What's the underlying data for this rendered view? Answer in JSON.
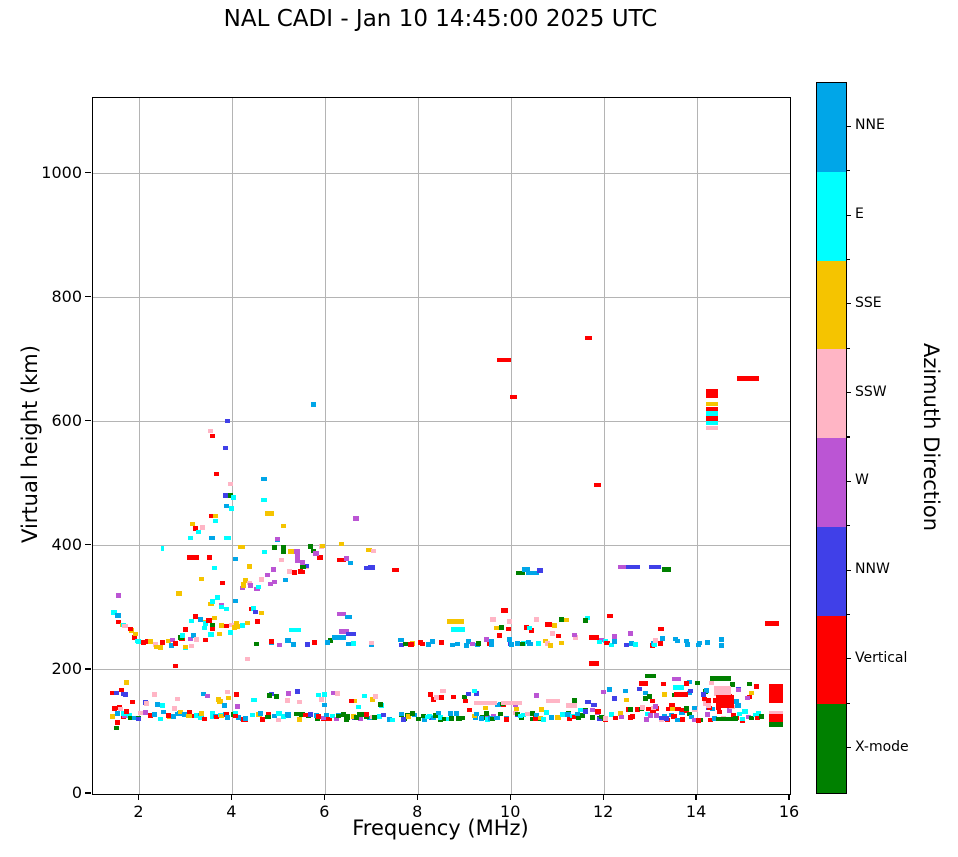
{
  "title": "NAL CADI - Jan 10 14:45:00 2025 UTC",
  "axes": {
    "x": {
      "label": "Frequency (MHz)",
      "min": 1,
      "max": 16,
      "ticks": [
        2,
        4,
        6,
        8,
        10,
        12,
        14,
        16
      ]
    },
    "y": {
      "label": "Virtual height (km)",
      "min": 0,
      "max": 1122,
      "ticks": [
        0,
        200,
        400,
        600,
        800,
        1000
      ]
    },
    "grid_color": "#b4b4b4"
  },
  "colorbar": {
    "label": "Azimuth Direction",
    "categories": [
      {
        "name": "NNE",
        "color": "#00A6E8"
      },
      {
        "name": "E",
        "color": "#00FFFF"
      },
      {
        "name": "SSE",
        "color": "#F5C400"
      },
      {
        "name": "SSW",
        "color": "#FFB5C5"
      },
      {
        "name": "W",
        "color": "#BB55D4"
      },
      {
        "name": "NNW",
        "color": "#4040E8"
      },
      {
        "name": "Vertical",
        "color": "#FE0000"
      },
      {
        "name": "X-mode",
        "color": "#008000"
      }
    ]
  },
  "chart_data": {
    "type": "scatter",
    "title": "NAL CADI - Jan 10 14:45:00 2025 UTC",
    "xlabel": "Frequency (MHz)",
    "ylabel": "Virtual height (km)",
    "xlim": [
      1,
      16
    ],
    "ylim": [
      0,
      1122
    ],
    "legend_categories": [
      "NNE",
      "E",
      "SSE",
      "SSW",
      "W",
      "NNW",
      "Vertical",
      "X-mode"
    ],
    "marker": {
      "w_mhz": 0.11,
      "h_km": 7.3
    },
    "bands": [
      {
        "seed": 11,
        "f0": 1.45,
        "f1": 5.5,
        "df": 0.11,
        "p": 0.97,
        "max": 3,
        "profile": [
          [
            1.45,
            127
          ],
          [
            5.5,
            125
          ]
        ],
        "spread": [
          6,
          6
        ],
        "colors": {
          "NNE": 34,
          "E": 16,
          "Vertical": 16,
          "SSE": 8,
          "X-mode": 8,
          "NNW": 7,
          "W": 5,
          "SSW": 6
        }
      },
      {
        "seed": 22,
        "f0": 5.5,
        "f1": 11.5,
        "df": 0.11,
        "p": 0.97,
        "max": 3,
        "profile": [
          [
            5.5,
            124
          ],
          [
            11.5,
            126
          ]
        ],
        "spread": [
          5,
          6
        ],
        "colors": {
          "X-mode": 30,
          "NNE": 25,
          "E": 12,
          "Vertical": 12,
          "NNW": 7,
          "W": 6,
          "SSE": 4,
          "SSW": 4
        }
      },
      {
        "seed": 33,
        "f0": 11.5,
        "f1": 15.35,
        "df": 0.11,
        "p": 0.95,
        "max": 3,
        "profile": [
          [
            11.5,
            128
          ],
          [
            15.35,
            130
          ]
        ],
        "spread": [
          9,
          12
        ],
        "colors": {
          "Vertical": 30,
          "X-mode": 20,
          "E": 14,
          "NNE": 10,
          "W": 11,
          "NNW": 6,
          "SSW": 5,
          "SSE": 4
        }
      },
      {
        "seed": 44,
        "f0": 1.45,
        "f1": 15.35,
        "df": 0.12,
        "p": 0.5,
        "max": 2,
        "profile": [
          [
            1.45,
            150
          ],
          [
            15.35,
            152
          ]
        ],
        "spread": [
          14,
          20
        ],
        "colors": {
          "SSW": 15,
          "W": 12,
          "E": 13,
          "NNE": 11,
          "Vertical": 16,
          "NNW": 10,
          "SSE": 10,
          "X-mode": 13
        }
      },
      {
        "seed": 55,
        "f0": 1.45,
        "f1": 1.78,
        "df": 0.07,
        "p": 0.92,
        "max": 4,
        "profile": [
          [
            1.45,
            140
          ],
          [
            1.78,
            140
          ]
        ],
        "spread": [
          46,
          46
        ],
        "colors": {
          "Vertical": 25,
          "NNW": 14,
          "E": 15,
          "SSE": 14,
          "NNE": 11,
          "X-mode": 5,
          "W": 6,
          "SSW": 10
        }
      },
      {
        "seed": 66,
        "f0": 12.6,
        "f1": 15.3,
        "df": 0.12,
        "p": 0.8,
        "max": 3,
        "profile": [
          [
            12.6,
            160
          ],
          [
            15.3,
            155
          ]
        ],
        "spread": [
          24,
          26
        ],
        "colors": {
          "Vertical": 30,
          "X-mode": 20,
          "E": 12,
          "W": 10,
          "SSW": 10,
          "NNE": 8,
          "SSE": 5,
          "NNW": 5
        }
      },
      {
        "seed": 77,
        "f0": 1.45,
        "f1": 4.6,
        "df": 0.09,
        "p": 0.95,
        "max": 2,
        "profile": [
          [
            1.45,
            292
          ],
          [
            1.8,
            258
          ],
          [
            2.1,
            237
          ],
          [
            2.5,
            236
          ],
          [
            3.0,
            244
          ],
          [
            3.5,
            258
          ],
          [
            4.0,
            272
          ],
          [
            4.6,
            292
          ]
        ],
        "spread": [
          9,
          14
        ],
        "colors": {
          "Vertical": 24,
          "SSW": 21,
          "SSE": 20,
          "E": 15,
          "NNE": 6,
          "X-mode": 6,
          "W": 4,
          "NNW": 4
        }
      },
      {
        "seed": 88,
        "f0": 2.9,
        "f1": 4.4,
        "df": 0.1,
        "p": 0.9,
        "max": 2,
        "profile": [
          [
            2.9,
            268
          ],
          [
            3.4,
            290
          ],
          [
            3.9,
            315
          ],
          [
            4.4,
            338
          ]
        ],
        "spread": [
          15,
          20
        ],
        "colors": {
          "E": 30,
          "NNE": 12,
          "SSE": 16,
          "Vertical": 12,
          "X-mode": 10,
          "SSW": 8,
          "W": 6,
          "NNW": 6
        }
      },
      {
        "seed": 99,
        "f0": 4.4,
        "f1": 5.95,
        "df": 0.1,
        "p": 0.9,
        "max": 2,
        "profile": [
          [
            4.4,
            332
          ],
          [
            4.9,
            352
          ],
          [
            5.5,
            374
          ],
          [
            5.95,
            392
          ]
        ],
        "spread": [
          18,
          24
        ],
        "colors": {
          "X-mode": 24,
          "W": 22,
          "SSE": 14,
          "E": 12,
          "SSW": 10,
          "Vertical": 8,
          "NNE": 6,
          "NNW": 4
        }
      },
      {
        "seed": 111,
        "f0": 3.3,
        "f1": 5.9,
        "df": 0.13,
        "p": 0.3,
        "max": 1,
        "profile": [
          [
            3.3,
            330
          ],
          [
            5.9,
            420
          ]
        ],
        "spread": [
          26,
          30
        ],
        "colors": {
          "E": 20,
          "SSE": 20,
          "W": 15,
          "X-mode": 15,
          "Vertical": 12,
          "SSW": 8,
          "NNE": 5,
          "NNW": 5
        }
      },
      {
        "seed": 122,
        "f0": 4.55,
        "f1": 14.6,
        "df": 0.11,
        "p": 0.6,
        "max": 2,
        "profile": [
          [
            4.55,
            243
          ],
          [
            14.6,
            245
          ]
        ],
        "spread": [
          4,
          6
        ],
        "colors": {
          "NNE": 42,
          "NNW": 13,
          "E": 12,
          "X-mode": 10,
          "W": 8,
          "Vertical": 7,
          "SSE": 4,
          "SSW": 4
        }
      },
      {
        "seed": 133,
        "f0": 9.6,
        "f1": 13.3,
        "df": 0.12,
        "p": 0.5,
        "max": 2,
        "profile": [
          [
            9.6,
            268
          ],
          [
            13.3,
            272
          ]
        ],
        "spread": [
          17,
          21
        ],
        "colors": {
          "SSW": 16,
          "SSE": 14,
          "X-mode": 16,
          "Vertical": 14,
          "E": 14,
          "NNE": 10,
          "W": 8,
          "NNW": 8
        }
      },
      {
        "seed": 144,
        "f0": 2.4,
        "f1": 7.1,
        "df": 0.16,
        "p": 0.26,
        "max": 1,
        "profile": [
          [
            2.4,
            400
          ],
          [
            7.1,
            375
          ]
        ],
        "spread": [
          30,
          26
        ],
        "colors": {
          "SSE": 18,
          "E": 16,
          "Vertical": 14,
          "W": 14,
          "X-mode": 12,
          "SSW": 10,
          "NNE": 8,
          "NNW": 8
        }
      }
    ],
    "features": [
      [
        3.52,
        585,
        "SSW"
      ],
      [
        3.58,
        577,
        "Vertical"
      ],
      [
        3.9,
        601,
        "NNW"
      ],
      [
        3.86,
        558,
        "NNW"
      ],
      [
        3.65,
        516,
        "Vertical"
      ],
      [
        3.95,
        500,
        "SSW"
      ],
      [
        4.68,
        508,
        "NNE"
      ],
      [
        3.86,
        481,
        "NNW"
      ],
      [
        3.95,
        481,
        "X-mode"
      ],
      [
        4.03,
        478,
        "E"
      ],
      [
        4.68,
        474,
        "E"
      ],
      [
        3.88,
        464,
        "NNE"
      ],
      [
        3.98,
        460,
        "E"
      ],
      [
        5.74,
        628,
        "NNE"
      ],
      [
        6.66,
        444,
        "W"
      ],
      [
        4.8,
        452,
        "SSE",
        0.18
      ],
      [
        5.1,
        432,
        "SSE"
      ],
      [
        3.55,
        448,
        "Vertical"
      ],
      [
        3.63,
        448,
        "SSE"
      ],
      [
        3.63,
        440,
        "E"
      ],
      [
        3.15,
        435,
        "SSE"
      ],
      [
        3.2,
        428,
        "Vertical"
      ],
      [
        3.28,
        422,
        "E"
      ],
      [
        3.36,
        430,
        "SSW"
      ],
      [
        2.5,
        396,
        "E",
        0.07
      ],
      [
        3.1,
        413,
        "E"
      ],
      [
        3.56,
        413,
        "NNE"
      ],
      [
        3.9,
        413,
        "E",
        0.15
      ],
      [
        4.98,
        411,
        "W"
      ],
      [
        4.2,
        398,
        "SSE",
        0.15
      ],
      [
        4.9,
        397,
        "X-mode"
      ],
      [
        5.1,
        394,
        "X-mode",
        0.11,
        2
      ],
      [
        5.26,
        391,
        "SSE"
      ],
      [
        3.15,
        381,
        "Vertical",
        0.25
      ],
      [
        3.5,
        381,
        "Vertical"
      ],
      [
        5.4,
        380,
        "W",
        0.11,
        2
      ],
      [
        5.5,
        373,
        "W"
      ],
      [
        5.52,
        366,
        "X-mode"
      ],
      [
        5.8,
        388,
        "W"
      ],
      [
        6.35,
        377,
        "Vertical",
        0.2
      ],
      [
        6.45,
        380,
        "W"
      ],
      [
        6.55,
        372,
        "NNE"
      ],
      [
        7.0,
        365,
        "NNW",
        0.15
      ],
      [
        6.9,
        364,
        "NNW",
        0.15
      ],
      [
        7.5,
        361,
        "Vertical",
        0.15
      ],
      [
        9.86,
        296,
        "Vertical",
        0.15
      ],
      [
        9.85,
        700,
        "Vertical",
        0.3
      ],
      [
        10.05,
        640,
        "Vertical",
        0.15
      ],
      [
        11.67,
        735,
        "Vertical",
        0.15
      ],
      [
        11.85,
        498,
        "Vertical",
        0.15
      ],
      [
        15.1,
        670,
        "Vertical",
        0.47
      ],
      [
        14.32,
        646,
        "Vertical",
        0.26,
        2
      ],
      [
        14.32,
        629,
        "SSE",
        0.26
      ],
      [
        14.32,
        621,
        "Vertical",
        0.26
      ],
      [
        14.32,
        613,
        "E",
        0.26
      ],
      [
        14.32,
        605,
        "Vertical",
        0.26
      ],
      [
        14.32,
        598,
        "E",
        0.26
      ],
      [
        14.32,
        590,
        "SSW",
        0.26
      ],
      [
        15.62,
        275,
        "Vertical",
        0.3
      ],
      [
        15.7,
        162,
        "Vertical",
        0.3,
        4
      ],
      [
        15.7,
        130,
        "SSW",
        0.3
      ],
      [
        15.7,
        121,
        "Vertical",
        0.3,
        2
      ],
      [
        15.7,
        112,
        "X-mode",
        0.3
      ],
      [
        10.2,
        356,
        "X-mode",
        0.18
      ],
      [
        10.32,
        362,
        "NNE",
        0.18
      ],
      [
        10.45,
        356,
        "NNE",
        0.28
      ],
      [
        10.62,
        360,
        "NNW",
        0.14
      ],
      [
        12.42,
        366,
        "W",
        0.25
      ],
      [
        12.62,
        366,
        "NNW",
        0.3
      ],
      [
        13.1,
        366,
        "NNW",
        0.25
      ],
      [
        13.35,
        362,
        "X-mode",
        0.2
      ],
      [
        8.8,
        278,
        "SSE",
        0.35
      ],
      [
        8.85,
        265,
        "E",
        0.3
      ],
      [
        11.78,
        252,
        "Vertical",
        0.2
      ],
      [
        11.78,
        210,
        "Vertical",
        0.2
      ],
      [
        6.35,
        290,
        "W",
        0.2
      ],
      [
        6.5,
        285,
        "NNE",
        0.15
      ],
      [
        6.4,
        262,
        "W",
        0.2
      ],
      [
        6.55,
        258,
        "NNW",
        0.2
      ],
      [
        6.3,
        252,
        "NNE",
        0.3
      ],
      [
        5.35,
        264,
        "E",
        0.25
      ],
      [
        9.45,
        147,
        "SSW",
        0.5
      ],
      [
        10.0,
        147,
        "SSW",
        0.45
      ],
      [
        10.9,
        150,
        "SSW",
        0.3
      ],
      [
        11.3,
        143,
        "SSW",
        0.25
      ],
      [
        14.5,
        186,
        "X-mode",
        0.45
      ],
      [
        14.55,
        166,
        "SSW",
        0.35,
        2
      ],
      [
        14.6,
        149,
        "Vertical",
        0.4,
        3
      ],
      [
        14.6,
        121,
        "X-mode",
        0.4
      ],
      [
        13.0,
        190,
        "X-mode",
        0.25
      ],
      [
        12.85,
        178,
        "Vertical",
        0.2
      ],
      [
        13.55,
        185,
        "W",
        0.2
      ],
      [
        13.6,
        172,
        "E",
        0.25
      ],
      [
        13.65,
        160,
        "Vertical",
        0.3
      ],
      [
        1.55,
        320,
        "W"
      ],
      [
        2.85,
        323,
        "SSE"
      ],
      [
        2.78,
        206,
        "Vertical"
      ],
      [
        4.32,
        218,
        "SSW"
      ]
    ]
  }
}
